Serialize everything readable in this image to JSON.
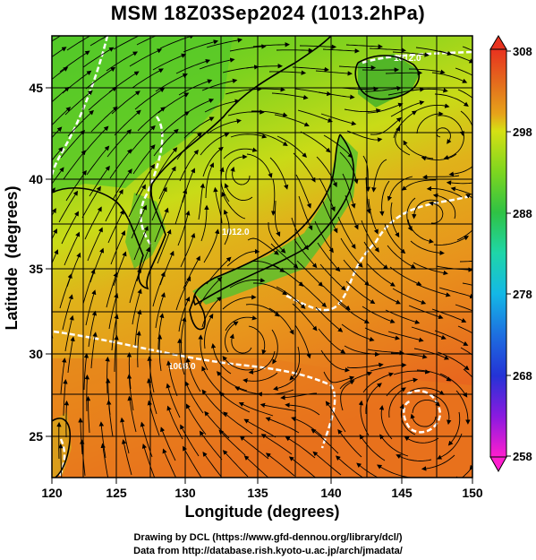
{
  "title": "MSM 18Z03Sep2024 (1013.2hPa)",
  "x_axis": {
    "label": "Longitude (degrees)",
    "ticks": [
      "120",
      "125",
      "130",
      "135",
      "140",
      "145",
      "150"
    ],
    "range": [
      120,
      150
    ]
  },
  "y_axis": {
    "label": "Latitude  (degrees)",
    "ticks": [
      "25",
      "30",
      "35",
      "40",
      "45"
    ],
    "range": [
      22.4,
      47.6
    ]
  },
  "colorbar": {
    "ticks": [
      "308",
      "298",
      "288",
      "278",
      "268",
      "258"
    ],
    "range": [
      258,
      308
    ],
    "colors": [
      "#ff1ecf",
      "#8a1ae0",
      "#2433d6",
      "#1d6fe0",
      "#14b8e6",
      "#1fd6a8",
      "#2fc244",
      "#7ed61f",
      "#d6e014",
      "#e6a41a",
      "#e46a1d",
      "#e8321f"
    ]
  },
  "contour_labels": [
    "1012.0",
    "1008.0",
    "1012.0"
  ],
  "credits": {
    "line1": "Drawing by DCL (https://www.gfd-dennou.org/library/dcl/)",
    "line2": "Data from http://database.rish.kyoto-u.ac.jp/arch/jmadata/"
  }
}
